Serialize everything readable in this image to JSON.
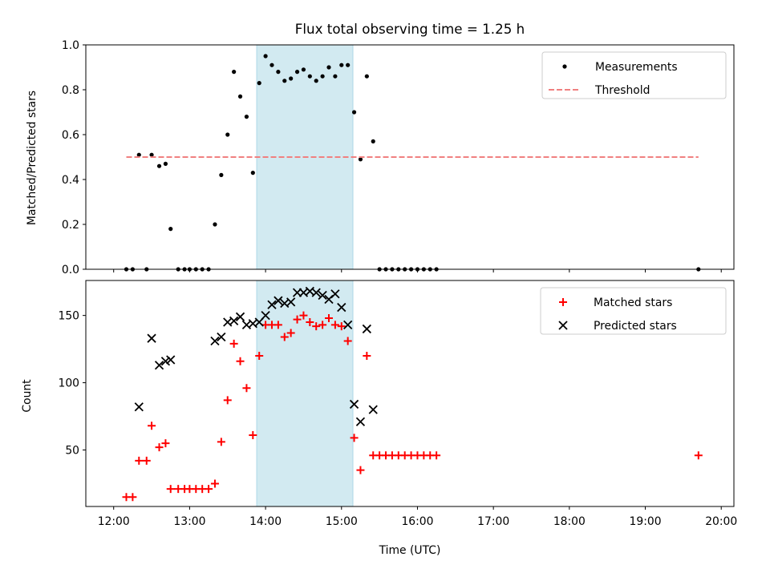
{
  "chart_data": [
    {
      "type": "scatter",
      "title": "Flux total observing time = 1.25 h",
      "xlabel": "",
      "ylabel": "Matched/Predicted stars",
      "xlim": [
        "12:00",
        "20:00"
      ],
      "ylim": [
        0,
        1.0
      ],
      "yticks": [
        "0.0",
        "0.2",
        "0.4",
        "0.6",
        "0.8",
        "1.0"
      ],
      "legend_position": "upper right",
      "shaded_interval": {
        "start": "13:53",
        "end": "15:09",
        "color": "#add8e6"
      },
      "series": [
        {
          "name": "Measurements",
          "marker": "dot",
          "color": "#000000",
          "points": [
            [
              "12:10",
              0.0
            ],
            [
              "12:15",
              0.0
            ],
            [
              "12:20",
              0.51
            ],
            [
              "12:26",
              0.0
            ],
            [
              "12:30",
              0.51
            ],
            [
              "12:36",
              0.46
            ],
            [
              "12:41",
              0.47
            ],
            [
              "12:45",
              0.18
            ],
            [
              "12:51",
              0.0
            ],
            [
              "12:56",
              0.0
            ],
            [
              "13:00",
              0.0
            ],
            [
              "13:05",
              0.0
            ],
            [
              "13:10",
              0.0
            ],
            [
              "13:15",
              0.0
            ],
            [
              "13:20",
              0.2
            ],
            [
              "13:25",
              0.42
            ],
            [
              "13:30",
              0.6
            ],
            [
              "13:35",
              0.88
            ],
            [
              "13:40",
              0.77
            ],
            [
              "13:45",
              0.68
            ],
            [
              "13:50",
              0.43
            ],
            [
              "13:55",
              0.83
            ],
            [
              "14:00",
              0.95
            ],
            [
              "14:05",
              0.91
            ],
            [
              "14:10",
              0.88
            ],
            [
              "14:15",
              0.84
            ],
            [
              "14:20",
              0.85
            ],
            [
              "14:25",
              0.88
            ],
            [
              "14:30",
              0.89
            ],
            [
              "14:35",
              0.86
            ],
            [
              "14:40",
              0.84
            ],
            [
              "14:45",
              0.86
            ],
            [
              "14:50",
              0.9
            ],
            [
              "14:55",
              0.86
            ],
            [
              "15:00",
              0.91
            ],
            [
              "15:05",
              0.91
            ],
            [
              "15:10",
              0.7
            ],
            [
              "15:15",
              0.49
            ],
            [
              "15:20",
              0.86
            ],
            [
              "15:25",
              0.57
            ],
            [
              "15:30",
              0.0
            ],
            [
              "15:35",
              0.0
            ],
            [
              "15:40",
              0.0
            ],
            [
              "15:45",
              0.0
            ],
            [
              "15:50",
              0.0
            ],
            [
              "15:55",
              0.0
            ],
            [
              "16:00",
              0.0
            ],
            [
              "16:05",
              0.0
            ],
            [
              "16:10",
              0.0
            ],
            [
              "16:15",
              0.0
            ],
            [
              "19:42",
              0.0
            ]
          ]
        },
        {
          "name": "Threshold",
          "type": "line",
          "style": "dashed",
          "color": "#f08080",
          "points": [
            [
              "12:10",
              0.5
            ],
            [
              "19:42",
              0.5
            ]
          ]
        }
      ]
    },
    {
      "type": "scatter",
      "title": "",
      "xlabel": "Time (UTC)",
      "ylabel": "Count",
      "xlim": [
        "12:00",
        "20:00"
      ],
      "ylim": [
        8,
        176
      ],
      "yticks": [
        "50",
        "100",
        "150"
      ],
      "xticks": [
        "12:00",
        "13:00",
        "14:00",
        "15:00",
        "16:00",
        "17:00",
        "18:00",
        "19:00",
        "20:00"
      ],
      "legend_position": "upper right",
      "shaded_interval": {
        "start": "13:53",
        "end": "15:09",
        "color": "#add8e6"
      },
      "series": [
        {
          "name": "Matched stars",
          "marker": "plus",
          "color": "#ff0000",
          "points": [
            [
              "12:10",
              15
            ],
            [
              "12:15",
              15
            ],
            [
              "12:20",
              42
            ],
            [
              "12:26",
              42
            ],
            [
              "12:30",
              68
            ],
            [
              "12:36",
              52
            ],
            [
              "12:41",
              55
            ],
            [
              "12:45",
              21
            ],
            [
              "12:51",
              21
            ],
            [
              "12:56",
              21
            ],
            [
              "13:00",
              21
            ],
            [
              "13:05",
              21
            ],
            [
              "13:10",
              21
            ],
            [
              "13:15",
              21
            ],
            [
              "13:20",
              25
            ],
            [
              "13:25",
              56
            ],
            [
              "13:30",
              87
            ],
            [
              "13:35",
              129
            ],
            [
              "13:40",
              116
            ],
            [
              "13:45",
              96
            ],
            [
              "13:50",
              61
            ],
            [
              "13:55",
              120
            ],
            [
              "14:00",
              143
            ],
            [
              "14:05",
              143
            ],
            [
              "14:10",
              143
            ],
            [
              "14:15",
              134
            ],
            [
              "14:20",
              137
            ],
            [
              "14:25",
              147
            ],
            [
              "14:30",
              150
            ],
            [
              "14:35",
              145
            ],
            [
              "14:40",
              142
            ],
            [
              "14:45",
              143
            ],
            [
              "14:50",
              148
            ],
            [
              "14:55",
              143
            ],
            [
              "15:00",
              142
            ],
            [
              "15:05",
              131
            ],
            [
              "15:10",
              59
            ],
            [
              "15:15",
              35
            ],
            [
              "15:20",
              120
            ],
            [
              "15:25",
              46
            ],
            [
              "15:30",
              46
            ],
            [
              "15:35",
              46
            ],
            [
              "15:40",
              46
            ],
            [
              "15:45",
              46
            ],
            [
              "15:50",
              46
            ],
            [
              "15:55",
              46
            ],
            [
              "16:00",
              46
            ],
            [
              "16:05",
              46
            ],
            [
              "16:10",
              46
            ],
            [
              "16:15",
              46
            ],
            [
              "19:42",
              46
            ]
          ]
        },
        {
          "name": "Predicted stars",
          "marker": "x",
          "color": "#000000",
          "points": [
            [
              "12:20",
              82
            ],
            [
              "12:30",
              133
            ],
            [
              "12:36",
              113
            ],
            [
              "12:41",
              116
            ],
            [
              "12:45",
              117
            ],
            [
              "13:20",
              131
            ],
            [
              "13:25",
              134
            ],
            [
              "13:30",
              145
            ],
            [
              "13:35",
              146
            ],
            [
              "13:40",
              149
            ],
            [
              "13:45",
              143
            ],
            [
              "13:50",
              144
            ],
            [
              "13:55",
              145
            ],
            [
              "14:00",
              150
            ],
            [
              "14:05",
              158
            ],
            [
              "14:10",
              161
            ],
            [
              "14:15",
              159
            ],
            [
              "14:20",
              160
            ],
            [
              "14:25",
              167
            ],
            [
              "14:30",
              167
            ],
            [
              "14:35",
              168
            ],
            [
              "14:40",
              167
            ],
            [
              "14:45",
              165
            ],
            [
              "14:50",
              162
            ],
            [
              "14:55",
              166
            ],
            [
              "15:00",
              156
            ],
            [
              "15:05",
              143
            ],
            [
              "15:10",
              84
            ],
            [
              "15:15",
              71
            ],
            [
              "15:20",
              140
            ],
            [
              "15:25",
              80
            ]
          ]
        }
      ]
    }
  ]
}
